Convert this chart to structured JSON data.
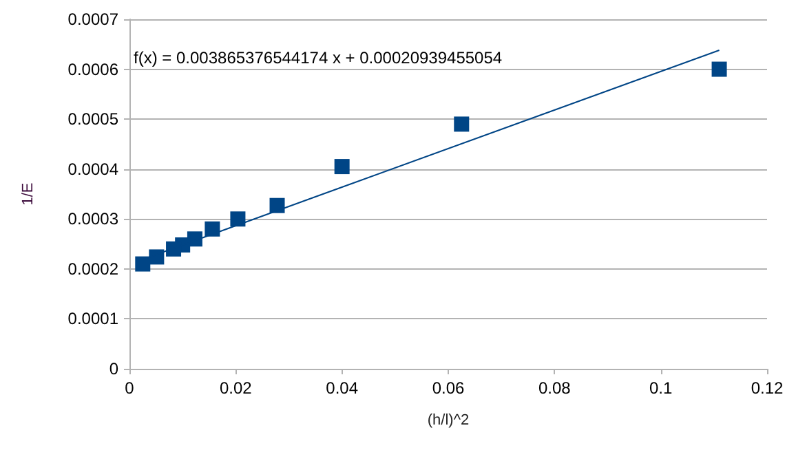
{
  "chart_data": {
    "type": "scatter",
    "xlabel": "(h/l)^2",
    "ylabel": "1/E",
    "annotations": [
      "f(x) = 0.003865376544174 x + 0.00020939455054"
    ],
    "xlim": [
      0,
      0.12
    ],
    "xticks": [
      0,
      0.02,
      0.04,
      0.06,
      0.08,
      0.1,
      0.12
    ],
    "ylim": [
      0,
      0.0007
    ],
    "yticks": [
      0,
      0.0001,
      0.0002,
      0.0003,
      0.0004,
      0.0005,
      0.0006,
      0.0007
    ],
    "grid": "y",
    "marker": "square",
    "series": [
      {
        "color": "#004586",
        "x": [
          0.111,
          0.0625,
          0.04,
          0.0278,
          0.0204,
          0.0156,
          0.0123,
          0.01,
          0.0083,
          0.0051,
          0.0025
        ],
        "values": [
          0.0006,
          0.00049,
          0.000405,
          0.000327,
          0.0003,
          0.00028,
          0.00026,
          0.000248,
          0.00024,
          0.000224,
          0.00021
        ]
      },
      {
        "type": "line",
        "color": "#004586",
        "marker": "none",
        "x": [
          0.0025,
          0.111
        ],
        "values": [
          0.000219,
          0.000638
        ]
      }
    ]
  }
}
